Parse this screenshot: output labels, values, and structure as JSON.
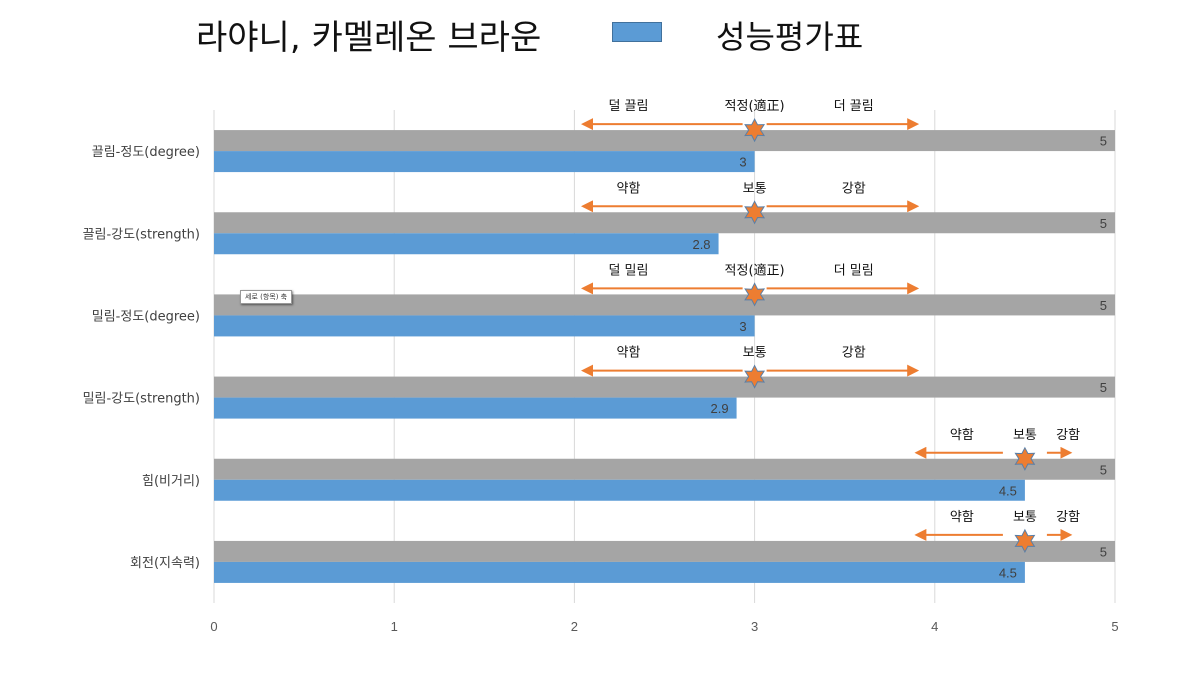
{
  "header": {
    "title": "라야니, 카멜레온 브라운",
    "legend_label": "성능평가표"
  },
  "tooltip": {
    "text": "세로 (항목) 축"
  },
  "colors": {
    "series": "#5b9bd5",
    "max_bar": "#a5a5a5",
    "arrow": "#ed7d31",
    "marker_fill": "#ed7d31",
    "marker_stroke": "#5b7fa6",
    "grid": "#d9d9d9"
  },
  "chart_data": {
    "type": "bar",
    "orientation": "horizontal",
    "categories": [
      "끌림-정도(degree)",
      "끌림-강도(strength)",
      "밀림-정도(degree)",
      "밀림-강도(strength)",
      "힘(비거리)",
      "회전(지속력)"
    ],
    "series": [
      {
        "values": [
          5,
          5,
          5,
          5,
          5,
          5
        ],
        "color": "#a5a5a5"
      },
      {
        "name": "성능평가표",
        "values": [
          3,
          2.8,
          3,
          2.9,
          4.5,
          4.5
        ],
        "color": "#5b9bd5"
      }
    ],
    "xlim": [
      0,
      5
    ],
    "xticks": [
      "0",
      "1",
      "2",
      "3",
      "4",
      "5"
    ],
    "grid": true,
    "legend_position": "top",
    "annotations": [
      {
        "left": "덜 끌림",
        "center": "적정(適正)",
        "right": "더 끌림",
        "marker": 3
      },
      {
        "left": "약함",
        "center": "보통",
        "right": "강함",
        "marker": 3
      },
      {
        "left": "덜 밀림",
        "center": "적정(適正)",
        "right": "더 밀림",
        "marker": 3
      },
      {
        "left": "약함",
        "center": "보통",
        "right": "강함",
        "marker": 3
      },
      {
        "left": "약함",
        "center": "보통",
        "right": "강함",
        "marker": 4.5
      },
      {
        "left": "약함",
        "center": "보통",
        "right": "강함",
        "marker": 4.5
      }
    ]
  }
}
